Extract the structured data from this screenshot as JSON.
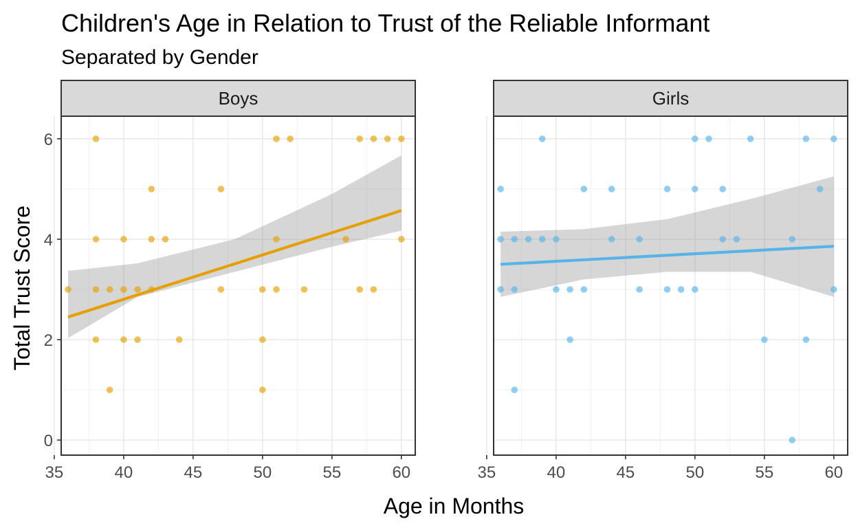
{
  "chart_data": {
    "type": "scatter",
    "title": "Children's Age in Relation to Trust of the Reliable Informant",
    "subtitle": "Separated by Gender",
    "xlabel": "Age in Months",
    "ylabel": "Total Trust Score",
    "xlim": [
      35.5,
      61
    ],
    "ylim": [
      -0.3,
      6.45
    ],
    "x_ticks": [
      35,
      40,
      45,
      50,
      55,
      60
    ],
    "y_ticks": [
      0,
      2,
      4,
      6
    ],
    "grid": true,
    "legend": "none",
    "panels": [
      {
        "name": "Boys",
        "color": "#E69F00",
        "points": [
          [
            36,
            3
          ],
          [
            38,
            6
          ],
          [
            38,
            4
          ],
          [
            38,
            3
          ],
          [
            38,
            2
          ],
          [
            39,
            3
          ],
          [
            39,
            1
          ],
          [
            40,
            4
          ],
          [
            40,
            3
          ],
          [
            40,
            2
          ],
          [
            41,
            3
          ],
          [
            41,
            2
          ],
          [
            42,
            5
          ],
          [
            42,
            4
          ],
          [
            42,
            3
          ],
          [
            43,
            4
          ],
          [
            44,
            2
          ],
          [
            47,
            5
          ],
          [
            47,
            3
          ],
          [
            50,
            3
          ],
          [
            50,
            2
          ],
          [
            50,
            1
          ],
          [
            51,
            6
          ],
          [
            51,
            4
          ],
          [
            51,
            3
          ],
          [
            52,
            6
          ],
          [
            53,
            3
          ],
          [
            56,
            4
          ],
          [
            57,
            6
          ],
          [
            57,
            3
          ],
          [
            58,
            6
          ],
          [
            58,
            3
          ],
          [
            59,
            6
          ],
          [
            60,
            6
          ],
          [
            60,
            4
          ]
        ],
        "trend": {
          "x": [
            36,
            60
          ],
          "y": [
            2.45,
            4.57
          ]
        },
        "band": {
          "x": [
            36,
            41,
            48,
            55,
            60
          ],
          "upper": [
            3.37,
            3.52,
            4.0,
            4.9,
            5.67
          ],
          "lower": [
            2.03,
            2.85,
            3.35,
            3.85,
            4.17
          ]
        }
      },
      {
        "name": "Girls",
        "color": "#56B4E9",
        "points": [
          [
            36,
            5
          ],
          [
            36,
            4
          ],
          [
            36,
            3
          ],
          [
            37,
            4
          ],
          [
            37,
            3
          ],
          [
            37,
            1
          ],
          [
            38,
            4
          ],
          [
            39,
            6
          ],
          [
            39,
            4
          ],
          [
            40,
            4
          ],
          [
            40,
            3
          ],
          [
            41,
            3
          ],
          [
            41,
            2
          ],
          [
            42,
            5
          ],
          [
            42,
            3
          ],
          [
            44,
            5
          ],
          [
            44,
            4
          ],
          [
            46,
            4
          ],
          [
            46,
            3
          ],
          [
            48,
            5
          ],
          [
            48,
            3
          ],
          [
            49,
            3
          ],
          [
            50,
            6
          ],
          [
            50,
            5
          ],
          [
            50,
            3
          ],
          [
            51,
            6
          ],
          [
            52,
            5
          ],
          [
            52,
            4
          ],
          [
            53,
            4
          ],
          [
            54,
            6
          ],
          [
            55,
            2
          ],
          [
            57,
            4
          ],
          [
            57,
            0
          ],
          [
            58,
            6
          ],
          [
            58,
            2
          ],
          [
            59,
            5
          ],
          [
            60,
            6
          ],
          [
            60,
            3
          ]
        ],
        "trend": {
          "x": [
            36,
            60
          ],
          "y": [
            3.5,
            3.86
          ]
        },
        "band": {
          "x": [
            36,
            42,
            48,
            54,
            60
          ],
          "upper": [
            4.15,
            4.2,
            4.4,
            4.8,
            5.25
          ],
          "lower": [
            2.85,
            3.2,
            3.35,
            3.35,
            2.85
          ]
        }
      }
    ]
  }
}
